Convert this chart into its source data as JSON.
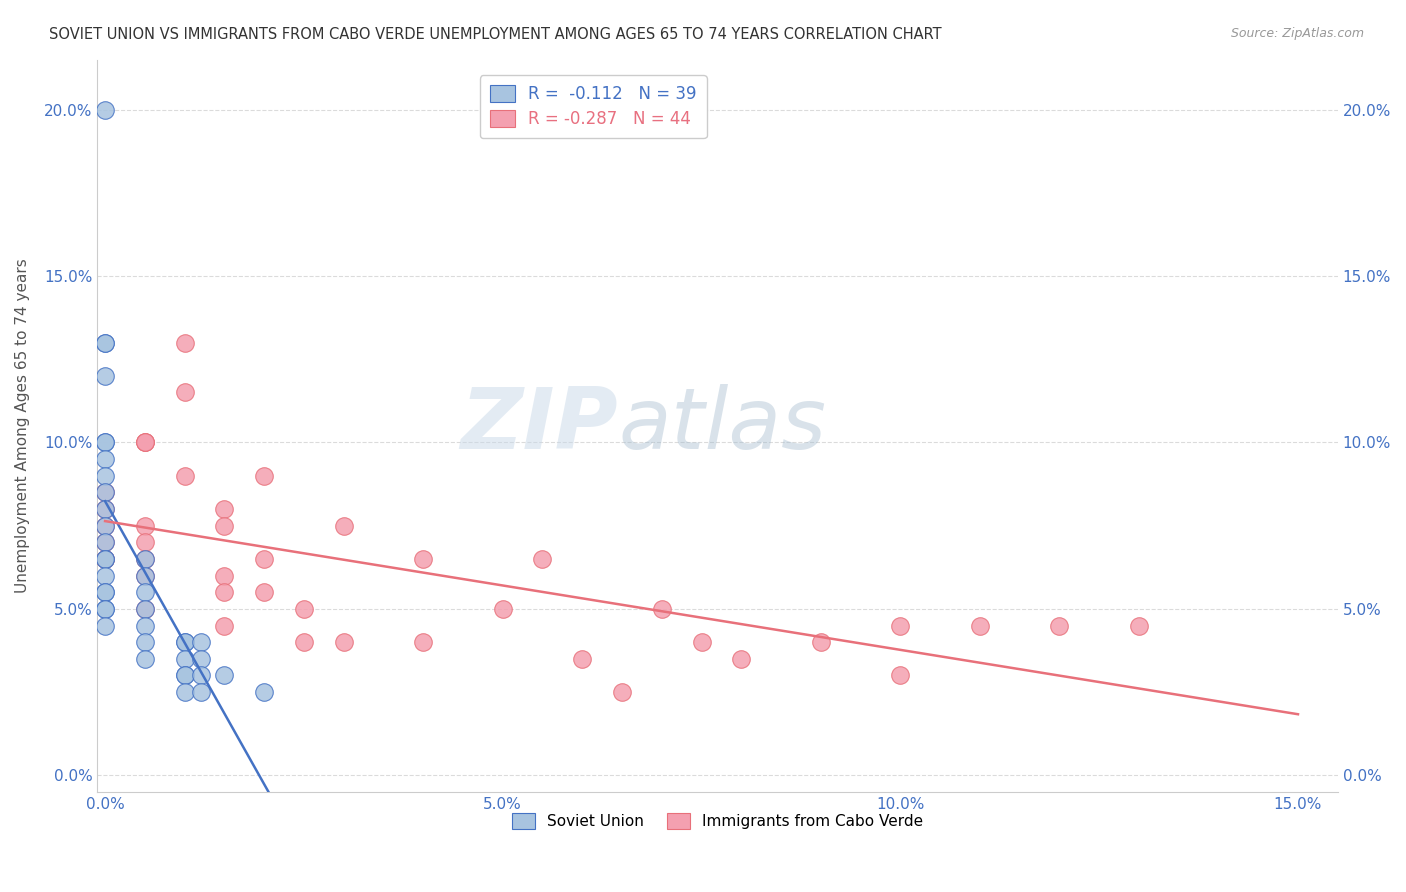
{
  "title": "SOVIET UNION VS IMMIGRANTS FROM CABO VERDE UNEMPLOYMENT AMONG AGES 65 TO 74 YEARS CORRELATION CHART",
  "source": "Source: ZipAtlas.com",
  "xlabel": "",
  "ylabel": "Unemployment Among Ages 65 to 74 years",
  "xlim": [
    -0.001,
    0.155
  ],
  "ylim": [
    -0.005,
    0.215
  ],
  "x_ticks": [
    0.0,
    0.05,
    0.1,
    0.15
  ],
  "x_tick_labels": [
    "0.0%",
    "5.0%",
    "10.0%",
    "15.0%"
  ],
  "y_ticks": [
    0.0,
    0.05,
    0.1,
    0.15,
    0.2
  ],
  "y_tick_labels": [
    "0.0%",
    "5.0%",
    "10.0%",
    "15.0%",
    "20.0%"
  ],
  "right_y_tick_labels": [
    "0.0%",
    "5.0%",
    "10.0%",
    "15.0%",
    "20.0%"
  ],
  "soviet_color": "#a8c4e0",
  "cabo_verde_color": "#f4a0b0",
  "soviet_edge_color": "#4472c4",
  "cabo_verde_edge_color": "#e8707a",
  "trendline_soviet_color": "#4472c4",
  "trendline_cabo_color": "#e8707a",
  "grid_color": "#cccccc",
  "background_color": "#ffffff",
  "watermark_zip": "ZIP",
  "watermark_atlas": "atlas",
  "legend_r_soviet": "-0.112",
  "legend_n_soviet": "39",
  "legend_r_cabo": "-0.287",
  "legend_n_cabo": "44",
  "soviet_x": [
    0.0,
    0.0,
    0.0,
    0.0,
    0.0,
    0.0,
    0.0,
    0.0,
    0.0,
    0.0,
    0.0,
    0.0,
    0.0,
    0.0,
    0.0,
    0.0,
    0.0,
    0.0,
    0.0,
    0.0,
    0.005,
    0.005,
    0.005,
    0.005,
    0.005,
    0.005,
    0.005,
    0.01,
    0.01,
    0.01,
    0.01,
    0.01,
    0.01,
    0.012,
    0.012,
    0.012,
    0.012,
    0.015,
    0.02
  ],
  "soviet_y": [
    0.2,
    0.13,
    0.13,
    0.12,
    0.1,
    0.1,
    0.095,
    0.09,
    0.085,
    0.08,
    0.075,
    0.07,
    0.065,
    0.065,
    0.06,
    0.055,
    0.055,
    0.05,
    0.05,
    0.045,
    0.065,
    0.06,
    0.055,
    0.05,
    0.045,
    0.04,
    0.035,
    0.04,
    0.04,
    0.035,
    0.03,
    0.03,
    0.025,
    0.04,
    0.035,
    0.03,
    0.025,
    0.03,
    0.025
  ],
  "cabo_x": [
    0.0,
    0.0,
    0.0,
    0.0,
    0.0,
    0.0,
    0.005,
    0.005,
    0.005,
    0.005,
    0.005,
    0.005,
    0.005,
    0.005,
    0.01,
    0.01,
    0.01,
    0.015,
    0.015,
    0.015,
    0.015,
    0.015,
    0.02,
    0.02,
    0.02,
    0.025,
    0.025,
    0.03,
    0.03,
    0.04,
    0.04,
    0.05,
    0.055,
    0.06,
    0.065,
    0.07,
    0.075,
    0.08,
    0.09,
    0.1,
    0.1,
    0.11,
    0.12,
    0.13
  ],
  "cabo_y": [
    0.085,
    0.08,
    0.075,
    0.07,
    0.065,
    0.065,
    0.1,
    0.1,
    0.1,
    0.075,
    0.07,
    0.065,
    0.06,
    0.05,
    0.13,
    0.115,
    0.09,
    0.08,
    0.075,
    0.06,
    0.055,
    0.045,
    0.09,
    0.065,
    0.055,
    0.05,
    0.04,
    0.075,
    0.04,
    0.065,
    0.04,
    0.05,
    0.065,
    0.035,
    0.025,
    0.05,
    0.04,
    0.035,
    0.04,
    0.045,
    0.03,
    0.045,
    0.045,
    0.045
  ]
}
